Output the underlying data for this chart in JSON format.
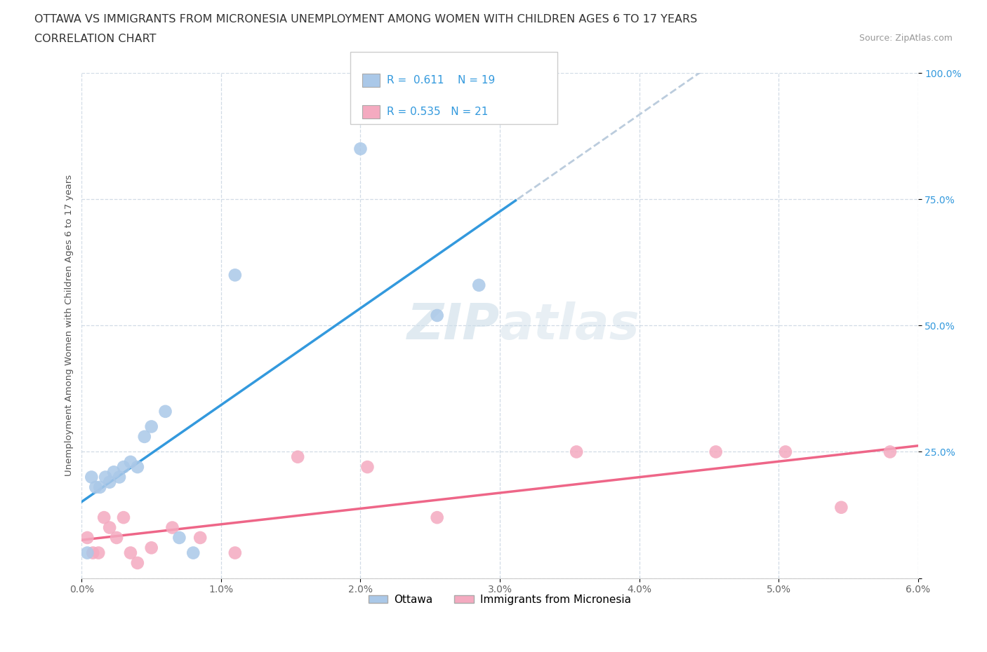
{
  "title_line1": "OTTAWA VS IMMIGRANTS FROM MICRONESIA UNEMPLOYMENT AMONG WOMEN WITH CHILDREN AGES 6 TO 17 YEARS",
  "title_line2": "CORRELATION CHART",
  "source": "Source: ZipAtlas.com",
  "ylabel_label": "Unemployment Among Women with Children Ages 6 to 17 years",
  "legend_bottom": [
    "Ottawa",
    "Immigrants from Micronesia"
  ],
  "ottawa_R": 0.611,
  "ottawa_N": 19,
  "micro_R": 0.535,
  "micro_N": 21,
  "ottawa_color": "#aac8e8",
  "micro_color": "#f4aac0",
  "trend_ottawa_color": "#3399dd",
  "trend_micro_color": "#ee6688",
  "trend_extend_color": "#bbccdd",
  "watermark_color": "#ccdde8",
  "bg_color": "#ffffff",
  "grid_color": "#ccd8e4",
  "xlim": [
    0.0,
    6.0
  ],
  "ylim": [
    0.0,
    100.0
  ],
  "xgrid_vals": [
    0.0,
    1.0,
    2.0,
    3.0,
    4.0,
    5.0,
    6.0
  ],
  "ygrid_vals": [
    0.0,
    25.0,
    50.0,
    75.0,
    100.0
  ],
  "ottawa_x": [
    0.04,
    0.07,
    0.1,
    0.13,
    0.17,
    0.2,
    0.23,
    0.27,
    0.3,
    0.35,
    0.4,
    0.45,
    0.5,
    0.6,
    0.7,
    0.8,
    1.1,
    2.55,
    2.85
  ],
  "ottawa_y": [
    5,
    20,
    18,
    18,
    20,
    19,
    21,
    20,
    22,
    23,
    22,
    28,
    30,
    33,
    8,
    5,
    60,
    52,
    58
  ],
  "outlier_ottawa_x": 2.0,
  "outlier_ottawa_y": 85,
  "micro_x": [
    0.04,
    0.08,
    0.12,
    0.16,
    0.2,
    0.25,
    0.3,
    0.35,
    0.4,
    0.5,
    0.65,
    0.85,
    1.1,
    1.55,
    2.05,
    2.55,
    3.55,
    4.55,
    5.05,
    5.45,
    5.8
  ],
  "micro_y": [
    8,
    5,
    5,
    12,
    10,
    8,
    12,
    5,
    3,
    6,
    10,
    8,
    5,
    24,
    22,
    12,
    25,
    25,
    25,
    14,
    25
  ]
}
